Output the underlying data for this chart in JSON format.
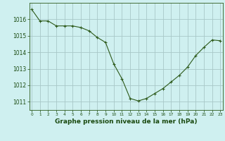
{
  "x": [
    0,
    1,
    2,
    3,
    4,
    5,
    6,
    7,
    8,
    9,
    10,
    11,
    12,
    13,
    14,
    15,
    16,
    17,
    18,
    19,
    20,
    21,
    22,
    23
  ],
  "y": [
    1016.6,
    1015.9,
    1015.9,
    1015.6,
    1015.6,
    1015.6,
    1015.5,
    1015.3,
    1014.9,
    1014.6,
    1013.3,
    1012.4,
    1011.2,
    1011.05,
    1011.2,
    1011.5,
    1011.8,
    1012.2,
    1012.6,
    1013.1,
    1013.8,
    1014.3,
    1014.75,
    1014.7
  ],
  "line_color": "#2d5a1b",
  "marker": "+",
  "marker_size": 3,
  "marker_linewidth": 0.8,
  "linewidth": 0.8,
  "background_color": "#cff0f0",
  "grid_color": "#a8c8c8",
  "xlabel": "Graphe pression niveau de la mer (hPa)",
  "xlabel_color": "#1a4a10",
  "tick_color": "#1a4a10",
  "ylim": [
    1010.5,
    1017.0
  ],
  "xlim": [
    -0.3,
    23.3
  ],
  "yticks": [
    1011,
    1012,
    1013,
    1014,
    1015,
    1016
  ],
  "xtick_labels": [
    "0",
    "1",
    "2",
    "3",
    "4",
    "5",
    "6",
    "7",
    "8",
    "9",
    "10",
    "11",
    "12",
    "13",
    "14",
    "15",
    "16",
    "17",
    "18",
    "19",
    "20",
    "21",
    "22",
    "23"
  ],
  "ytick_fontsize": 5.5,
  "xtick_fontsize": 4.2,
  "xlabel_fontsize": 6.5,
  "xlabel_fontweight": "bold"
}
